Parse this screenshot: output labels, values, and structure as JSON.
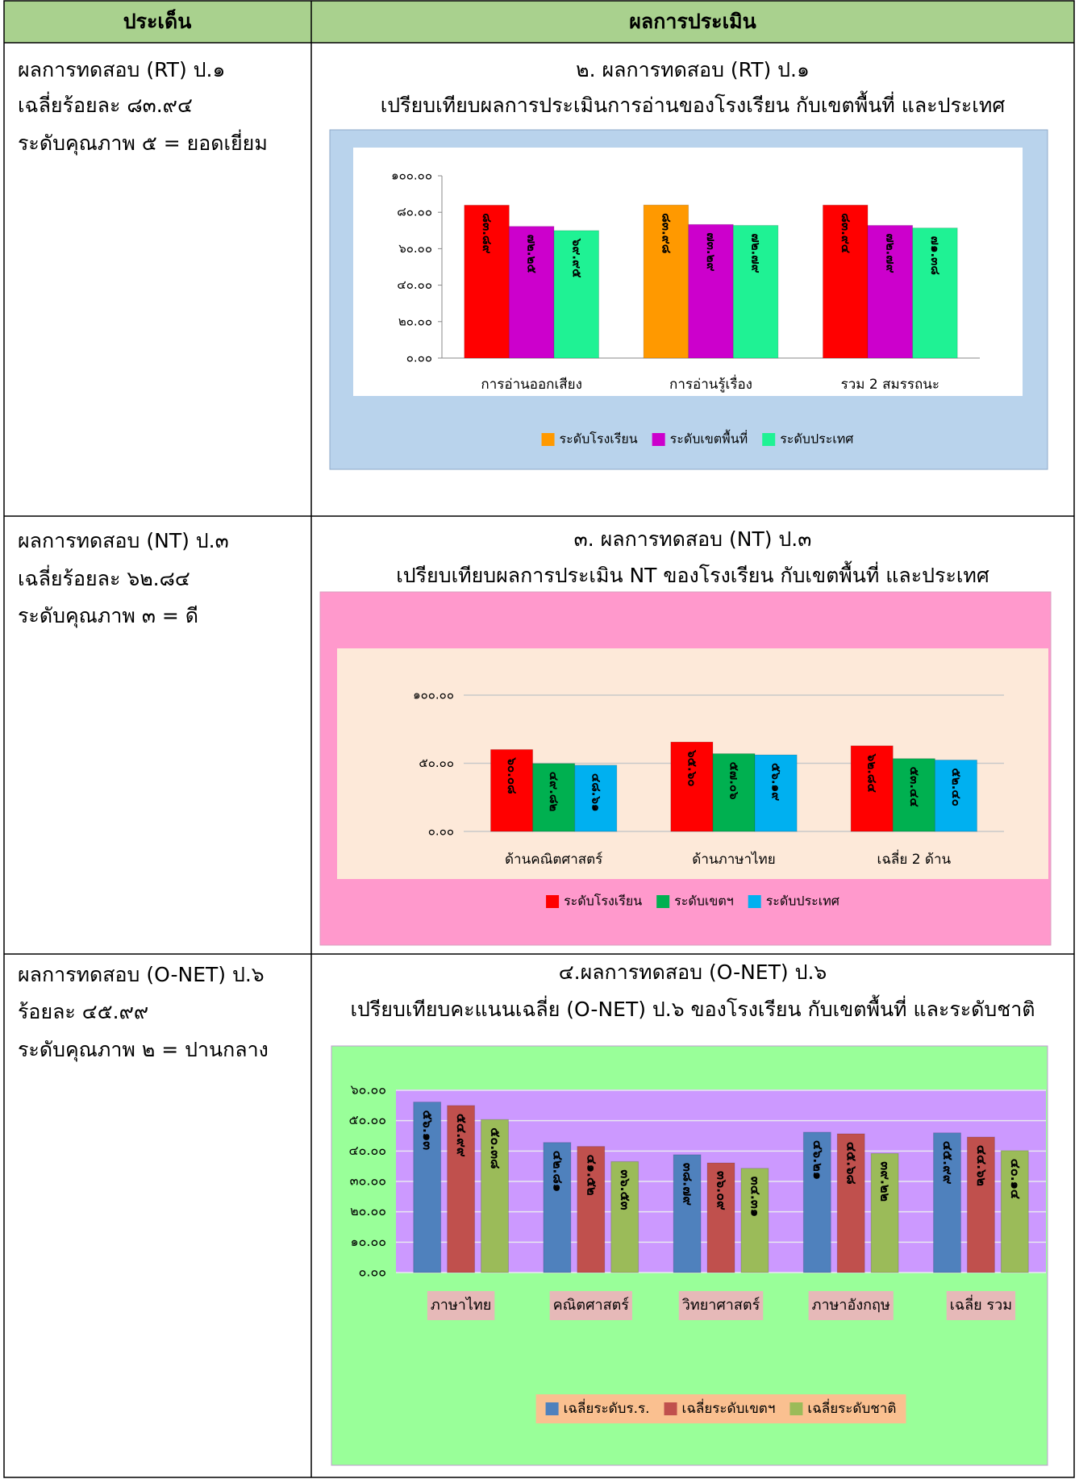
{
  "table": {
    "header": [
      "ประเด็น",
      "ผลการประเมิน"
    ],
    "rows": [
      {
        "cells": [
          "ผลการทดสอบ (RT) ป.๑",
          "เฉลี่ยร้อยละ ๘๓.๙๔",
          "ระดับคุณภาพ ๕ = ยอดเยี่ยม"
        ],
        "chart_title": [
          "๒. ผลการทดสอบ (RT) ป.๑",
          "เปรียบเทียบผลการประเมินการอ่านของโรงเรียน กับเขตพื้นที่ และประเทศ"
        ]
      },
      {
        "cells": [
          "ผลการทดสอบ (NT) ป.๓",
          "เฉลี่ยร้อยละ ๖๒.๘๔",
          "ระดับคุณภาพ ๓ = ดี"
        ],
        "chart_title": [
          "๓. ผลการทดสอบ (NT) ป.๓",
          "เปรียบเทียบผลการประเมิน NT ของโรงเรียน กับเขตพื้นที่ และประเทศ"
        ]
      },
      {
        "cells": [
          "ผลการทดสอบ (O-NET) ป.๖",
          "ร้อยละ ๔๕.๙๙",
          "ระดับคุณภาพ ๒ =  ปานกลาง"
        ],
        "chart_title": [
          "๔.ผลการทดสอบ (O-NET) ป.๖",
          "เปรียบเทียบคะแนนเฉลี่ย (O-NET) ป.๖ ของโรงเรียน กับเขตพื้นที่ และระดับชาติ"
        ]
      }
    ]
  },
  "chart_data": [
    {
      "type": "bar",
      "categories": [
        "การอ่านออกเสียง",
        "การอ่านรู้เรื่อง",
        "รวม 2 สมรรถนะ"
      ],
      "series": [
        {
          "name": "ระดับโรงเรียน",
          "color": "#ff9900",
          "colors": [
            "#ff0000",
            "#ff9900",
            "#ff0000"
          ],
          "values": [
            83.89,
            83.98,
            83.94
          ],
          "value_labels": [
            "๘๓.๘๙",
            "๘๓.๙๘",
            "๘๓.๙๔"
          ]
        },
        {
          "name": "ระดับเขตพื้นที่",
          "color": "#cc00cc",
          "values": [
            72.25,
            73.29,
            72.79
          ],
          "value_labels": [
            "๗๒.๒๕",
            "๗๓.๒๙",
            "๗๒.๗๙"
          ]
        },
        {
          "name": "ระดับประเทศ",
          "color": "#1ff294",
          "values": [
            69.95,
            72.79,
            71.38
          ],
          "value_labels": [
            "๖๙.๙๕",
            "๗๒.๗๙",
            "๗๑.๓๘"
          ]
        }
      ],
      "ylim": [
        0,
        100
      ],
      "yticks": [
        {
          "value": 0,
          "label": "๐.๐๐"
        },
        {
          "value": 20,
          "label": "๒๐.๐๐"
        },
        {
          "value": 40,
          "label": "๔๐.๐๐"
        },
        {
          "value": 60,
          "label": "๖๐.๐๐"
        },
        {
          "value": 80,
          "label": "๘๐.๐๐"
        },
        {
          "value": 100,
          "label": "๑๐๐.๐๐"
        }
      ],
      "grid": false,
      "legend": "bottom"
    },
    {
      "type": "bar",
      "categories": [
        "ด้านคณิตศาสตร์",
        "ด้านภาษาไทย",
        "เฉลี่ย 2 ด้าน"
      ],
      "series": [
        {
          "name": "ระดับโรงเรียน",
          "color": "#ff0000",
          "values": [
            60.08,
            65.6,
            62.84
          ],
          "value_labels": [
            "๖๐.๐๘",
            "๖๕.๖๐",
            "๖๒.๘๔"
          ]
        },
        {
          "name": "ระดับเขตฯ",
          "color": "#00b050",
          "values": [
            49.82,
            57.06,
            53.44
          ],
          "value_labels": [
            "๔๙.๘๒",
            "๕๗.๐๖",
            "๕๓.๔๔"
          ]
        },
        {
          "name": "ระดับประเทศ",
          "color": "#00b0f0",
          "values": [
            48.61,
            56.19,
            52.4
          ],
          "value_labels": [
            "๔๘.๖๑",
            "๕๖.๑๙",
            "๕๒.๔๐"
          ]
        }
      ],
      "ylim": [
        0,
        100
      ],
      "yticks": [
        {
          "value": 0,
          "label": "๐.๐๐"
        },
        {
          "value": 50,
          "label": "๕๐.๐๐"
        },
        {
          "value": 100,
          "label": "๑๐๐.๐๐"
        }
      ],
      "grid": true,
      "legend": "bottom"
    },
    {
      "type": "bar",
      "categories": [
        "ภาษาไทย",
        "คณิตศาสตร์",
        "วิทยาศาสตร์",
        "ภาษาอังกฤษ",
        "เฉลี่ย รวม"
      ],
      "series": [
        {
          "name": "เฉลี่ยระดับร.ร.",
          "color": "#4f81bd",
          "values": [
            56.13,
            42.81,
            38.79,
            46.21,
            45.99
          ],
          "value_labels": [
            "๕๖.๑๓",
            "๔๒.๘๑",
            "๓๘.๗๙",
            "๔๖.๒๑",
            "๔๕.๙๙"
          ]
        },
        {
          "name": "เฉลี่ยระดับเขตฯ",
          "color": "#c0504d",
          "values": [
            54.99,
            41.52,
            36.09,
            45.68,
            44.62
          ],
          "value_labels": [
            "๕๔.๙๙",
            "๔๑.๕๒",
            "๓๖.๐๙",
            "๔๕.๖๘",
            "๔๔.๖๒"
          ]
        },
        {
          "name": "เฉลี่ยระดับชาติ",
          "color": "#9bbb59",
          "values": [
            50.38,
            36.53,
            34.31,
            39.22,
            40.14
          ],
          "value_labels": [
            "๕๐.๓๘",
            "๓๖.๕๓",
            "๓๔.๓๑",
            "๓๙.๒๒",
            "๔๐.๑๔"
          ]
        }
      ],
      "ylim": [
        0,
        60
      ],
      "yticks": [
        {
          "value": 0,
          "label": "๐.๐๐"
        },
        {
          "value": 10,
          "label": "๑๐.๐๐"
        },
        {
          "value": 20,
          "label": "๒๐.๐๐"
        },
        {
          "value": 30,
          "label": "๓๐.๐๐"
        },
        {
          "value": 40,
          "label": "๔๐.๐๐"
        },
        {
          "value": 50,
          "label": "๕๐.๐๐"
        },
        {
          "value": 60,
          "label": "๖๐.๐๐"
        }
      ],
      "grid": true,
      "legend": "bottom"
    }
  ]
}
